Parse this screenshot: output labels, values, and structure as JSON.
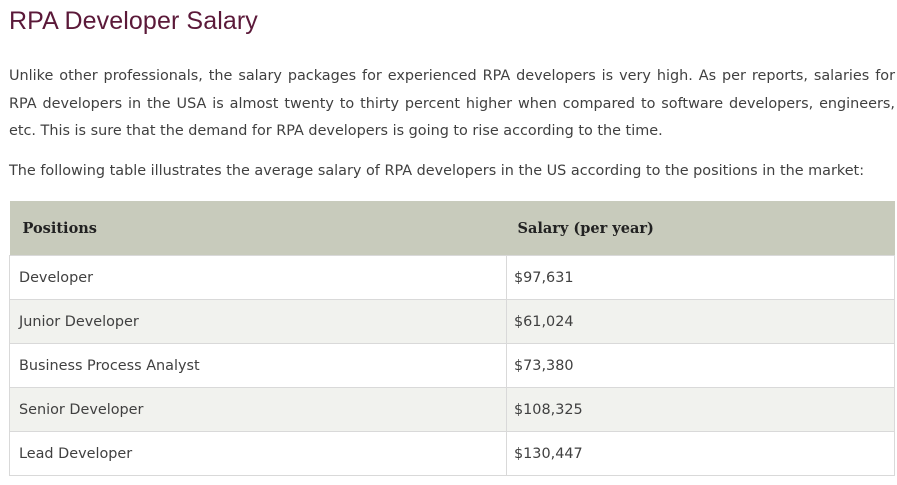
{
  "heading": "RPA Developer Salary",
  "intro": "Unlike other professionals, the salary packages for experienced RPA developers is very high. As per reports, salaries for RPA developers in the USA is almost twenty to thirty percent higher when compared to software developers, engineers, etc. This is sure that the demand for RPA developers is going to rise according to the time.",
  "table_intro": "The following table illustrates the average salary of RPA developers in the US according to the positions in the market:",
  "table": {
    "headers": [
      "Positions",
      "Salary (per year)"
    ],
    "rows": [
      [
        "Developer",
        "$97,631"
      ],
      [
        "Junior Developer",
        "$61,024"
      ],
      [
        "Business Process Analyst",
        "$73,380"
      ],
      [
        "Senior Developer",
        "$108,325"
      ],
      [
        "Lead Developer",
        "$130,447"
      ]
    ]
  }
}
